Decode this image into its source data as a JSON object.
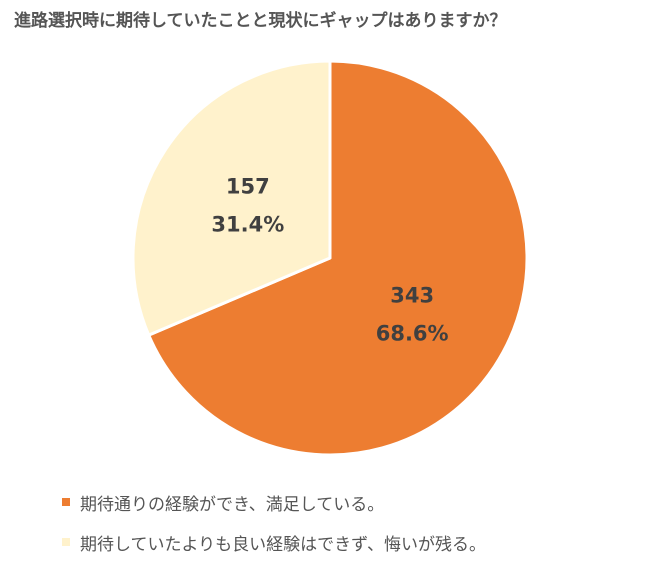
{
  "chart_data": {
    "type": "pie",
    "title": "進路選択時に期待していたことと現状にギャップはありますか？",
    "series": [
      {
        "name": "期待通りの経験ができ、満足している。",
        "value": 343,
        "percent_label": "68.6%",
        "color": "#ED7D31"
      },
      {
        "name": "期待していたよりも良い経験はできず、悔いが残る。",
        "value": 157,
        "percent_label": "31.4%",
        "color": "#FFF2CC"
      }
    ],
    "start_angle": "12 o'clock",
    "direction": "clockwise",
    "legend_position": "bottom-left"
  }
}
